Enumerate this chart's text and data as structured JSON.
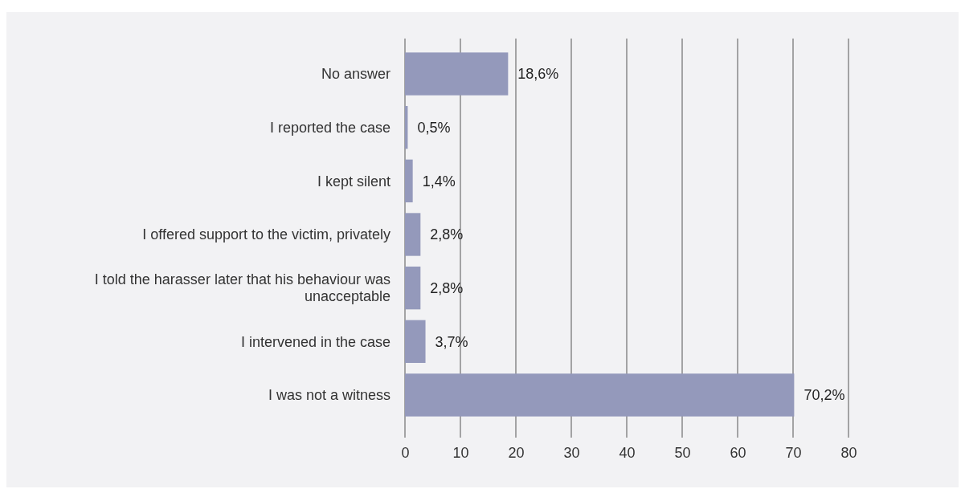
{
  "chart_data": {
    "type": "bar",
    "orientation": "horizontal",
    "categories": [
      "No answer",
      "I reported the case",
      "I kept silent",
      "I offered support to the victim, privately",
      "I told the harasser later that his behaviour was unacceptable",
      "I intervened in the case",
      "I was not a witness"
    ],
    "values": [
      18.6,
      0.5,
      1.4,
      2.8,
      2.8,
      3.7,
      70.2
    ],
    "value_labels": [
      "18,6%",
      "0,5%",
      "1,4%",
      "2,8%",
      "2,8%",
      "3,7%",
      "70,2%"
    ],
    "color": "#9499bb",
    "xlim": [
      0,
      80
    ],
    "xticks": [
      0,
      10,
      20,
      30,
      40,
      50,
      60,
      70,
      80
    ],
    "grid": "x"
  }
}
